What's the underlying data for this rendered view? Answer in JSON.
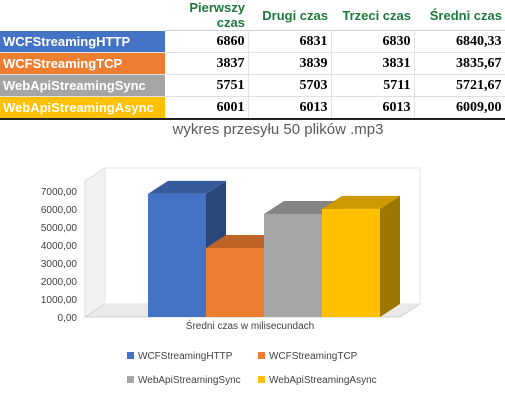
{
  "table": {
    "columns": [
      "",
      "Pierwszy czas",
      "Drugi czas",
      "Trzeci czas",
      "Średni czas"
    ],
    "rows": [
      {
        "label": "WCFStreamingHTTP",
        "color": "#4472C4",
        "values": [
          "6860",
          "6831",
          "6830",
          "6840,33"
        ]
      },
      {
        "label": "WCFStreamingTCP",
        "color": "#ED7D31",
        "values": [
          "3837",
          "3839",
          "3831",
          "3835,67"
        ]
      },
      {
        "label": "WebApiStreamingSync",
        "color": "#A5A5A5",
        "values": [
          "5751",
          "5703",
          "5711",
          "5721,67"
        ]
      },
      {
        "label": "WebApiStreamingAsync",
        "color": "#FFC000",
        "values": [
          "6001",
          "6013",
          "6013",
          "6009,00"
        ]
      }
    ]
  },
  "chart_data": {
    "type": "bar",
    "variant": "3d-clustered-column",
    "title": "wykres przesyłu 50 plików .mp3",
    "categories": [
      "Średni czas w milisecundach"
    ],
    "series": [
      {
        "name": "WCFStreamingHTTP",
        "values": [
          6840.33
        ],
        "color": "#4472C4"
      },
      {
        "name": "WCFStreamingTCP",
        "values": [
          3835.67
        ],
        "color": "#ED7D31"
      },
      {
        "name": "WebApiStreamingSync",
        "values": [
          5721.67
        ],
        "color": "#A5A5A5"
      },
      {
        "name": "WebApiStreamingAsync",
        "values": [
          6009.0
        ],
        "color": "#FFC000"
      }
    ],
    "ylim": [
      0,
      7000
    ],
    "yticks": [
      0,
      1000,
      2000,
      3000,
      4000,
      5000,
      6000,
      7000
    ],
    "ytick_labels": [
      "0,00",
      "1000,00",
      "2000,00",
      "3000,00",
      "4000,00",
      "5000,00",
      "6000,00",
      "7000,00"
    ],
    "grid": false,
    "legend": "bottom"
  }
}
